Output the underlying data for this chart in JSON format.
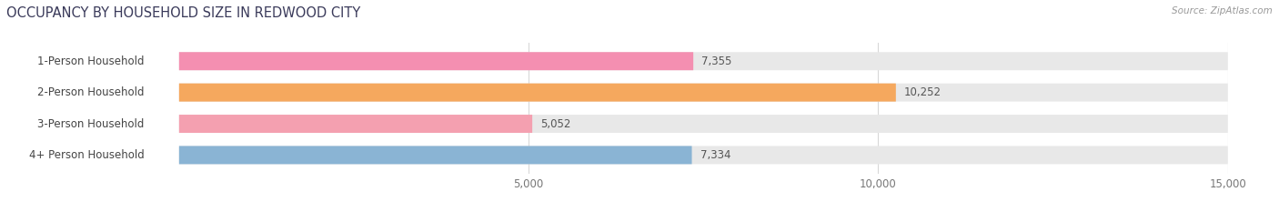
{
  "title": "OCCUPANCY BY HOUSEHOLD SIZE IN REDWOOD CITY",
  "source": "Source: ZipAtlas.com",
  "categories": [
    "1-Person Household",
    "2-Person Household",
    "3-Person Household",
    "4+ Person Household"
  ],
  "values": [
    7355,
    10252,
    5052,
    7334
  ],
  "bar_colors": [
    "#f48fb1",
    "#f5a85e",
    "#f4a0b0",
    "#8ab4d4"
  ],
  "bg_bar_color": "#e8e8e8",
  "xlim": [
    0,
    15000
  ],
  "xticks": [
    5000,
    10000,
    15000
  ],
  "xtick_labels": [
    "5,000",
    "10,000",
    "15,000"
  ],
  "label_fontsize": 8.5,
  "title_fontsize": 10.5,
  "value_fontsize": 8.5,
  "bar_height": 0.58,
  "fig_bg_color": "#ffffff",
  "title_color": "#3a3a5a",
  "grid_color": "#d8d8d8",
  "label_text_color": "#444444",
  "value_text_color": "#555555",
  "source_color": "#999999"
}
